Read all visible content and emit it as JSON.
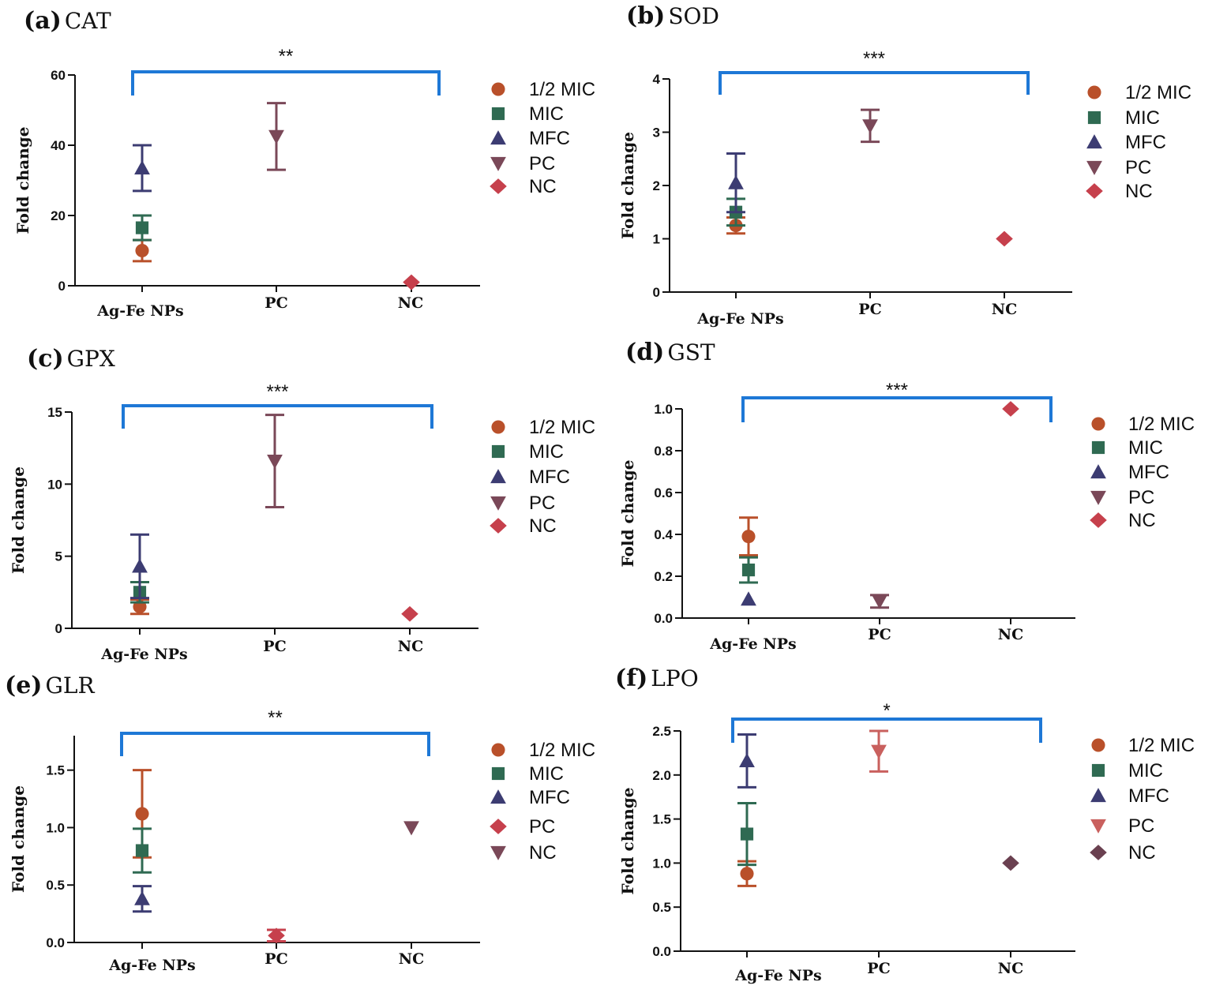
{
  "colors": {
    "half_mic": "#b9502a",
    "mic": "#2f6a52",
    "mfc": "#3c3c72",
    "pc": "#7a4858",
    "nc": "#c6404c",
    "lpo_pc": "#c9605e",
    "lpo_nc": "#6a4050",
    "bracket": "#1e78d6",
    "axis": "#111111"
  },
  "chart_data": [
    {
      "id": "a",
      "type": "scatter",
      "letter": "(a)",
      "title": "CAT",
      "ylabel": "Fold change",
      "categories": [
        "Ag-Fe NPs",
        "PC",
        "NC"
      ],
      "ylim": [
        0,
        60
      ],
      "yticks": [
        0,
        20,
        40,
        60
      ],
      "significance": "**",
      "legend": [
        "1/2 MIC",
        "MIC",
        "MFC",
        "PC",
        "NC"
      ],
      "legend_markers": [
        "circle",
        "square",
        "triangle-up",
        "triangle-down",
        "diamond"
      ],
      "legend_colors": [
        "half_mic",
        "mic",
        "mfc",
        "pc",
        "nc"
      ],
      "points": [
        {
          "series": "1/2 MIC",
          "category": 0,
          "y": 10,
          "err": 3,
          "marker": "circle",
          "color": "half_mic"
        },
        {
          "series": "MIC",
          "category": 0,
          "y": 16.5,
          "err": 3.5,
          "marker": "square",
          "color": "mic"
        },
        {
          "series": "MFC",
          "category": 0,
          "y": 33.5,
          "err": 6.5,
          "marker": "triangle-up",
          "color": "mfc"
        },
        {
          "series": "PC",
          "category": 1,
          "y": 42.5,
          "err": 9.5,
          "marker": "triangle-down",
          "color": "pc"
        },
        {
          "series": "NC",
          "category": 2,
          "y": 1,
          "err": 0,
          "marker": "diamond",
          "color": "nc"
        }
      ]
    },
    {
      "id": "b",
      "type": "scatter",
      "letter": "(b)",
      "title": "SOD",
      "ylabel": "Fold change",
      "categories": [
        "Ag-Fe NPs",
        "PC",
        "NC"
      ],
      "ylim": [
        0,
        4
      ],
      "yticks": [
        0,
        1,
        2,
        3,
        4
      ],
      "significance": "***",
      "legend": [
        "1/2 MIC",
        "MIC",
        "MFC",
        "PC",
        "NC"
      ],
      "legend_markers": [
        "circle",
        "square",
        "triangle-up",
        "triangle-down",
        "diamond"
      ],
      "legend_colors": [
        "half_mic",
        "mic",
        "mfc",
        "pc",
        "nc"
      ],
      "points": [
        {
          "series": "1/2 MIC",
          "category": 0,
          "y": 1.25,
          "err": 0.15,
          "marker": "circle",
          "color": "half_mic"
        },
        {
          "series": "MIC",
          "category": 0,
          "y": 1.5,
          "err": 0.25,
          "marker": "square",
          "color": "mic"
        },
        {
          "series": "MFC",
          "category": 0,
          "y": 2.05,
          "err": 0.55,
          "marker": "triangle-up",
          "color": "mfc"
        },
        {
          "series": "PC",
          "category": 1,
          "y": 3.12,
          "err": 0.3,
          "marker": "triangle-down",
          "color": "pc"
        },
        {
          "series": "NC",
          "category": 2,
          "y": 1,
          "err": 0,
          "marker": "diamond",
          "color": "nc"
        }
      ]
    },
    {
      "id": "c",
      "type": "scatter",
      "letter": "(c)",
      "title": "GPX",
      "ylabel": "Fold change",
      "categories": [
        "Ag-Fe NPs",
        "PC",
        "NC"
      ],
      "ylim": [
        0,
        15
      ],
      "yticks": [
        0,
        5,
        10,
        15
      ],
      "significance": "***",
      "legend": [
        "1/2 MIC",
        "MIC",
        "MFC",
        "PC",
        "NC"
      ],
      "legend_markers": [
        "circle",
        "square",
        "triangle-up",
        "triangle-down",
        "diamond"
      ],
      "legend_colors": [
        "half_mic",
        "mic",
        "mfc",
        "pc",
        "nc"
      ],
      "points": [
        {
          "series": "1/2 MIC",
          "category": 0,
          "y": 1.5,
          "err": 0.5,
          "marker": "circle",
          "color": "half_mic"
        },
        {
          "series": "MIC",
          "category": 0,
          "y": 2.5,
          "err": 0.7,
          "marker": "square",
          "color": "mic"
        },
        {
          "series": "MFC",
          "category": 0,
          "y": 4.3,
          "err": 2.2,
          "marker": "triangle-up",
          "color": "mfc"
        },
        {
          "series": "PC",
          "category": 1,
          "y": 11.6,
          "err": 3.2,
          "marker": "triangle-down",
          "color": "pc"
        },
        {
          "series": "NC",
          "category": 2,
          "y": 1,
          "err": 0,
          "marker": "diamond",
          "color": "nc"
        }
      ]
    },
    {
      "id": "d",
      "type": "scatter",
      "letter": "(d)",
      "title": "GST",
      "ylabel": "Fold change",
      "categories": [
        "Ag-Fe NPs",
        "PC",
        "NC"
      ],
      "ylim": [
        0,
        1
      ],
      "yticks": [
        0,
        0.2,
        0.4,
        0.6,
        0.8,
        1
      ],
      "ytick_labels": [
        "0.0",
        "0.2",
        "0.4",
        "0.6",
        "0.8",
        "1.0"
      ],
      "significance": "***",
      "legend": [
        "1/2 MIC",
        "MIC",
        "MFC",
        "PC",
        "NC"
      ],
      "legend_markers": [
        "circle",
        "square",
        "triangle-up",
        "triangle-down",
        "diamond"
      ],
      "legend_colors": [
        "half_mic",
        "mic",
        "mfc",
        "pc",
        "nc"
      ],
      "points": [
        {
          "series": "1/2 MIC",
          "category": 0,
          "y": 0.39,
          "err": 0.09,
          "marker": "circle",
          "color": "half_mic"
        },
        {
          "series": "MIC",
          "category": 0,
          "y": 0.23,
          "err": 0.06,
          "marker": "square",
          "color": "mic"
        },
        {
          "series": "MFC",
          "category": 0,
          "y": 0.09,
          "err": 0,
          "marker": "triangle-up",
          "color": "mfc"
        },
        {
          "series": "PC",
          "category": 1,
          "y": 0.08,
          "err": 0.03,
          "marker": "triangle-down",
          "color": "pc"
        },
        {
          "series": "NC",
          "category": 2,
          "y": 1,
          "err": 0,
          "marker": "diamond",
          "color": "nc"
        }
      ]
    },
    {
      "id": "e",
      "type": "scatter",
      "letter": "(e)",
      "title": "GLR",
      "ylabel": "Fold change",
      "categories": [
        "Ag-Fe NPs",
        "PC",
        "NC"
      ],
      "ylim": [
        0,
        1.8
      ],
      "yticks": [
        0,
        0.5,
        1,
        1.5
      ],
      "ytick_labels": [
        "0.0",
        "0.5",
        "1.0",
        "1.5"
      ],
      "significance": "**",
      "legend": [
        "1/2 MIC",
        "MIC",
        "MFC",
        "PC",
        "NC"
      ],
      "legend_markers": [
        "circle",
        "square",
        "triangle-up",
        "diamond",
        "triangle-down"
      ],
      "legend_colors": [
        "half_mic",
        "mic",
        "mfc",
        "nc",
        "pc"
      ],
      "points": [
        {
          "series": "1/2 MIC",
          "category": 0,
          "y": 1.12,
          "err": 0.38,
          "marker": "circle",
          "color": "half_mic"
        },
        {
          "series": "MIC",
          "category": 0,
          "y": 0.8,
          "err": 0.19,
          "marker": "square",
          "color": "mic"
        },
        {
          "series": "MFC",
          "category": 0,
          "y": 0.38,
          "err": 0.11,
          "marker": "triangle-up",
          "color": "mfc"
        },
        {
          "series": "PC",
          "category": 1,
          "y": 0.06,
          "err": 0.05,
          "marker": "diamond",
          "color": "nc"
        },
        {
          "series": "NC",
          "category": 2,
          "y": 1,
          "err": 0,
          "marker": "triangle-down",
          "color": "pc"
        }
      ]
    },
    {
      "id": "f",
      "type": "scatter",
      "letter": "(f)",
      "title": "LPO",
      "ylabel": "Fold change",
      "categories": [
        "Ag-Fe NPs",
        "PC",
        "NC"
      ],
      "ylim": [
        0,
        2.5
      ],
      "yticks": [
        0,
        0.5,
        1,
        1.5,
        2,
        2.5
      ],
      "ytick_labels": [
        "0.0",
        "0.5",
        "1.0",
        "1.5",
        "2.0",
        "2.5"
      ],
      "significance": "*",
      "legend": [
        "1/2 MIC",
        "MIC",
        "MFC",
        "PC",
        "NC"
      ],
      "legend_markers": [
        "circle",
        "square",
        "triangle-up",
        "triangle-down",
        "diamond"
      ],
      "legend_colors": [
        "half_mic",
        "mic",
        "mfc",
        "lpo_pc",
        "lpo_nc"
      ],
      "points": [
        {
          "series": "1/2 MIC",
          "category": 0,
          "y": 0.88,
          "err": 0.14,
          "marker": "circle",
          "color": "half_mic"
        },
        {
          "series": "MIC",
          "category": 0,
          "y": 1.33,
          "err": 0.35,
          "marker": "square",
          "color": "mic"
        },
        {
          "series": "MFC",
          "category": 0,
          "y": 2.16,
          "err": 0.3,
          "marker": "triangle-up",
          "color": "mfc"
        },
        {
          "series": "PC",
          "category": 1,
          "y": 2.27,
          "err": 0.23,
          "marker": "triangle-down",
          "color": "lpo_pc"
        },
        {
          "series": "NC",
          "category": 2,
          "y": 1,
          "err": 0,
          "marker": "diamond",
          "color": "lpo_nc"
        }
      ]
    }
  ]
}
